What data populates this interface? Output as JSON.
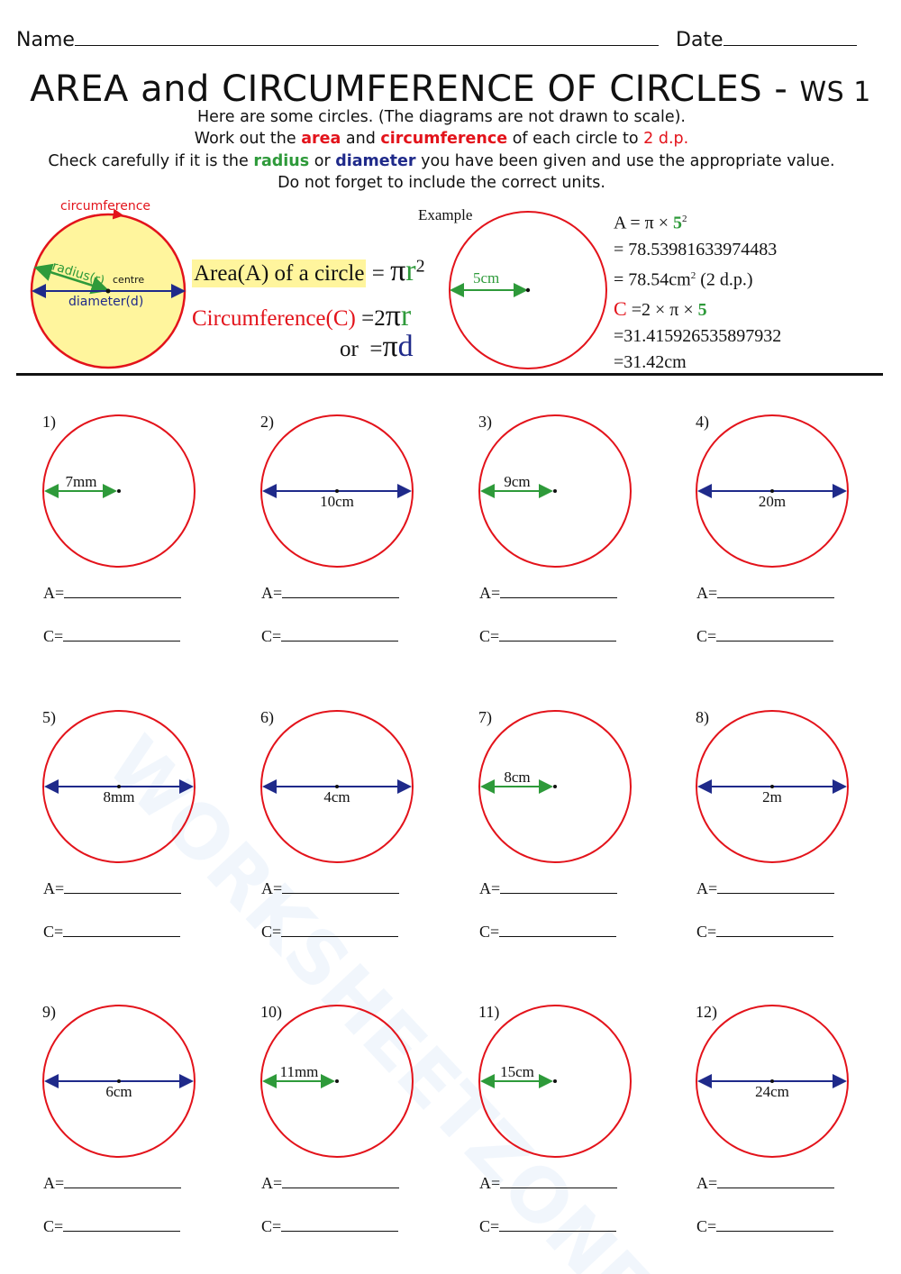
{
  "header": {
    "name_label": "Name",
    "date_label": "Date"
  },
  "title": {
    "main": "AREA and CIRCUMFERENCE OF CIRCLES - ",
    "ws": "WS 1"
  },
  "instructions": {
    "line1": "Here are some circles. (The diagrams are not drawn to scale).",
    "line2_a": "Work out the ",
    "line2_area": "area",
    "line2_b": " and ",
    "line2_circ": "circumference",
    "line2_c": " of each circle to ",
    "line2_dp": "2 d.p.",
    "line3_a": "Check carefully if it is the ",
    "line3_radius": "radius",
    "line3_b": " or ",
    "line3_diameter": "diameter",
    "line3_c": " you have been given and use the appropriate value.",
    "line4": "Do not forget to include the correct units."
  },
  "diagram": {
    "circumference": "circumference",
    "radius": "radius(r)",
    "centre": "centre",
    "diameter": "diameter(d)",
    "fill_color": "#fff59d"
  },
  "formulas": {
    "area_label": "Area(A) of a circle",
    "area_eq": "=",
    "area_pi": "π",
    "area_r": "r",
    "area_sq": "2",
    "circ_label": "Circumference(C)",
    "circ_eq": "=2",
    "circ_pi": "π",
    "circ_r": "r",
    "or": "or",
    "or_eq": "=",
    "or_pi": "π",
    "or_d": "d"
  },
  "example": {
    "label": "Example",
    "radius": "5cm",
    "a1_a": "A = π × ",
    "a1_5": "5",
    "a1_sq": "2",
    "a2": "= 78.53981633974483",
    "a3": "= 78.54cm",
    "a3_sq": "2",
    "a3_b": " (2 d.p.)",
    "c1_c": "C",
    "c1_b": " =2 × π ×  ",
    "c1_5": "5",
    "c2": "=31.415926535897932",
    "c3": "=31.42cm"
  },
  "answer_labels": {
    "area": "A=",
    "circ": "C="
  },
  "problems": [
    {
      "num": "1)",
      "type": "radius",
      "value": "7mm"
    },
    {
      "num": "2)",
      "type": "diameter",
      "value": "10cm"
    },
    {
      "num": "3)",
      "type": "radius",
      "value": "9cm"
    },
    {
      "num": "4)",
      "type": "diameter",
      "value": "20m"
    },
    {
      "num": "5)",
      "type": "diameter",
      "value": "8mm"
    },
    {
      "num": "6)",
      "type": "diameter",
      "value": "4cm"
    },
    {
      "num": "7)",
      "type": "radius",
      "value": "8cm"
    },
    {
      "num": "8)",
      "type": "diameter",
      "value": "2m"
    },
    {
      "num": "9)",
      "type": "diameter",
      "value": "6cm"
    },
    {
      "num": "10)",
      "type": "radius",
      "value": "11mm"
    },
    {
      "num": "11)",
      "type": "radius",
      "value": "15cm"
    },
    {
      "num": "12)",
      "type": "diameter",
      "value": "24cm"
    }
  ],
  "watermark": "WORKSHEETZONE",
  "colors": {
    "circle": "#e3131b",
    "radius": "#2e9a3a",
    "diameter": "#1f2a8a"
  }
}
